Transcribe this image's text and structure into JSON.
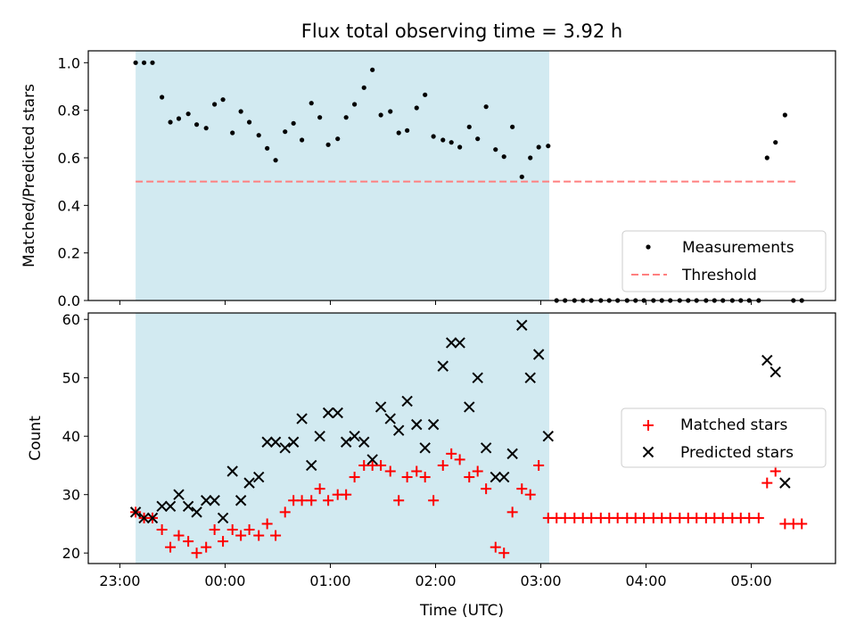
{
  "colors": {
    "span": "#add8e6",
    "measurement": "#000000",
    "threshold": "#ff7f7f",
    "matched": "#ff0000",
    "predicted": "#000000"
  },
  "chart_data": [
    {
      "type": "scatter",
      "title": "Flux total observing time = 3.92 h",
      "xlabel": "",
      "ylabel": "Matched/Predicted stars",
      "x_unit": "hours since 23:00 UTC",
      "xlim": [
        -0.3,
        6.8
      ],
      "ylim": [
        0,
        1.05
      ],
      "yticks": [
        0.0,
        0.2,
        0.4,
        0.6,
        0.8,
        1.0
      ],
      "ytick_labels": [
        "0.0",
        "0.2",
        "0.4",
        "0.6",
        "0.8",
        "1.0"
      ],
      "observing_span": [
        0.15,
        4.08
      ],
      "threshold": {
        "value": 0.5,
        "x_range": [
          0.15,
          6.45
        ]
      },
      "legend": {
        "placement": "lower right",
        "entries": [
          "Measurements",
          "Threshold"
        ]
      },
      "series": [
        {
          "name": "Measurements",
          "marker": "dot",
          "x": [
            0.15,
            0.23,
            0.31,
            0.4,
            0.48,
            0.56,
            0.65,
            0.73,
            0.82,
            0.9,
            0.98,
            1.07,
            1.15,
            1.23,
            1.32,
            1.4,
            1.48,
            1.57,
            1.65,
            1.73,
            1.82,
            1.9,
            1.98,
            2.07,
            2.15,
            2.23,
            2.32,
            2.4,
            2.48,
            2.57,
            2.65,
            2.73,
            2.82,
            2.9,
            2.98,
            3.07,
            3.15,
            3.23,
            3.32,
            3.4,
            3.48,
            3.57,
            3.65,
            3.73,
            3.82,
            3.9,
            3.98,
            4.07,
            4.15,
            4.23,
            4.32,
            4.4,
            4.48,
            4.57,
            4.65,
            4.73,
            4.82,
            4.9,
            4.98,
            5.07,
            5.15,
            5.23,
            5.32,
            5.4,
            5.48,
            5.57,
            5.65,
            5.73,
            5.82,
            5.9,
            5.98,
            6.07,
            6.15,
            6.23,
            6.32,
            6.4,
            6.48
          ],
          "y": [
            1.0,
            1.0,
            1.0,
            0.855,
            0.75,
            0.765,
            0.785,
            0.74,
            0.725,
            0.825,
            0.845,
            0.705,
            0.795,
            0.75,
            0.695,
            0.64,
            0.59,
            0.71,
            0.745,
            0.675,
            0.83,
            0.77,
            0.655,
            0.68,
            0.77,
            0.825,
            0.895,
            0.97,
            0.78,
            0.795,
            0.705,
            0.715,
            0.81,
            0.865,
            0.69,
            0.675,
            0.665,
            0.645,
            0.73,
            0.68,
            0.815,
            0.635,
            0.605,
            0.73,
            0.52,
            0.6,
            0.645,
            0.65,
            0.0,
            0.0,
            0.0,
            0.0,
            0.0,
            0.0,
            0.0,
            0.0,
            0.0,
            0.0,
            0.0,
            0.0,
            0.0,
            0.0,
            0.0,
            0.0,
            0.0,
            0.0,
            0.0,
            0.0,
            0.0,
            0.0,
            0.0,
            0.0,
            0.6,
            0.665,
            0.78,
            0.0,
            0.0
          ]
        }
      ]
    },
    {
      "type": "scatter",
      "title": "",
      "xlabel": "Time (UTC)",
      "ylabel": "Count",
      "x_unit": "hours since 23:00 UTC",
      "xlim": [
        -0.3,
        6.8
      ],
      "ylim": [
        18.2,
        61.1
      ],
      "xticks": [
        0,
        1,
        2,
        3,
        4,
        5,
        6
      ],
      "xtick_labels": [
        "23:00",
        "00:00",
        "01:00",
        "02:00",
        "03:00",
        "04:00",
        "05:00"
      ],
      "yticks": [
        20,
        30,
        40,
        50,
        60
      ],
      "ytick_labels": [
        "20",
        "30",
        "40",
        "50",
        "60"
      ],
      "observing_span": [
        0.15,
        4.08
      ],
      "legend": {
        "placement": "center right",
        "entries": [
          "Matched stars",
          "Predicted stars"
        ]
      },
      "series": [
        {
          "name": "Matched stars",
          "marker": "plus",
          "x": [
            0.15,
            0.23,
            0.31,
            0.4,
            0.48,
            0.56,
            0.65,
            0.73,
            0.82,
            0.9,
            0.98,
            1.07,
            1.15,
            1.23,
            1.32,
            1.4,
            1.48,
            1.57,
            1.65,
            1.73,
            1.82,
            1.9,
            1.98,
            2.07,
            2.15,
            2.23,
            2.32,
            2.4,
            2.48,
            2.57,
            2.65,
            2.73,
            2.82,
            2.9,
            2.98,
            3.07,
            3.15,
            3.23,
            3.32,
            3.4,
            3.48,
            3.57,
            3.65,
            3.73,
            3.82,
            3.9,
            3.98,
            4.07,
            4.15,
            4.23,
            4.32,
            4.4,
            4.48,
            4.57,
            4.65,
            4.73,
            4.82,
            4.9,
            4.98,
            5.07,
            5.15,
            5.23,
            5.32,
            5.4,
            5.48,
            5.57,
            5.65,
            5.73,
            5.82,
            5.9,
            5.98,
            6.07,
            6.15,
            6.23,
            6.32,
            6.4,
            6.48
          ],
          "y": [
            27,
            26,
            26,
            24,
            21,
            23,
            22,
            20,
            21,
            24,
            22,
            24,
            23,
            24,
            23,
            25,
            23,
            27,
            29,
            29,
            29,
            31,
            29,
            30,
            30,
            33,
            35,
            35,
            35,
            34,
            29,
            33,
            34,
            33,
            29,
            35,
            37,
            36,
            33,
            34,
            31,
            21,
            20,
            27,
            31,
            30,
            35,
            26,
            26,
            26,
            26,
            26,
            26,
            26,
            26,
            26,
            26,
            26,
            26,
            26,
            26,
            26,
            26,
            26,
            26,
            26,
            26,
            26,
            26,
            26,
            26,
            26,
            32,
            34,
            25,
            25,
            25
          ]
        },
        {
          "name": "Predicted stars",
          "marker": "x",
          "x": [
            0.15,
            0.23,
            0.31,
            0.4,
            0.48,
            0.56,
            0.65,
            0.73,
            0.82,
            0.9,
            0.98,
            1.07,
            1.15,
            1.23,
            1.32,
            1.4,
            1.48,
            1.57,
            1.65,
            1.73,
            1.82,
            1.9,
            1.98,
            2.07,
            2.15,
            2.23,
            2.32,
            2.4,
            2.48,
            2.57,
            2.65,
            2.73,
            2.82,
            2.9,
            2.98,
            3.07,
            3.15,
            3.23,
            3.32,
            3.4,
            3.48,
            3.57,
            3.65,
            3.73,
            3.82,
            3.9,
            3.98,
            4.07,
            6.15,
            6.23,
            6.32
          ],
          "y": [
            27,
            26,
            26,
            28,
            28,
            30,
            28,
            27,
            29,
            29,
            26,
            34,
            29,
            32,
            33,
            39,
            39,
            38,
            39,
            43,
            35,
            40,
            44,
            44,
            39,
            40,
            39,
            36,
            45,
            43,
            41,
            46,
            42,
            38,
            42,
            52,
            56,
            56,
            45,
            50,
            38,
            33,
            33,
            37,
            59,
            50,
            54,
            40,
            53,
            51,
            32
          ]
        }
      ]
    }
  ]
}
